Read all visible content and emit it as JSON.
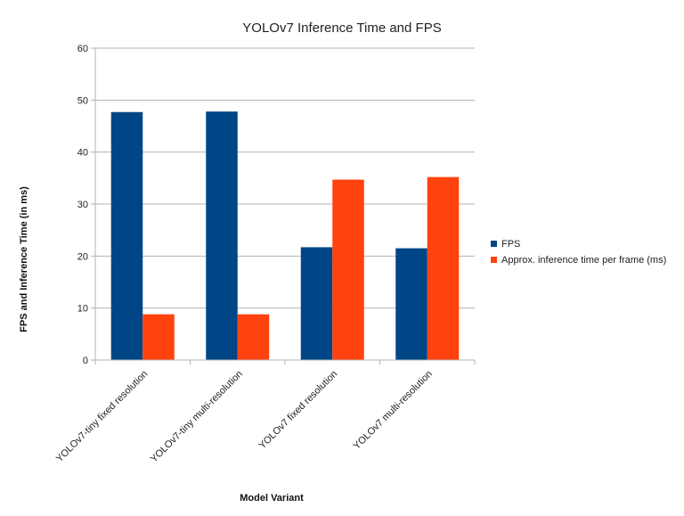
{
  "chart_data": {
    "type": "bar",
    "title": "YOLOv7 Inference Time and FPS",
    "xlabel": "Model Variant",
    "ylabel": "FPS and Inference Time (in ms)",
    "categories": [
      "YOLOv7-tiny fixed resolution",
      "YOLOv7-tiny multi-resolution",
      "YOLOv7 fixed resolution",
      "YOLOv7 multi-resolution"
    ],
    "series": [
      {
        "name": "FPS",
        "color": "#004586",
        "values": [
          47.7,
          47.8,
          21.7,
          21.5
        ]
      },
      {
        "name": "Approx. inference time per frame (ms)",
        "color": "#ff420e",
        "values": [
          8.8,
          8.8,
          34.7,
          35.2
        ]
      }
    ],
    "ylim": [
      0,
      60
    ],
    "yticks": [
      0,
      10,
      20,
      30,
      40,
      50,
      60
    ],
    "grid": true,
    "legend": "right"
  }
}
